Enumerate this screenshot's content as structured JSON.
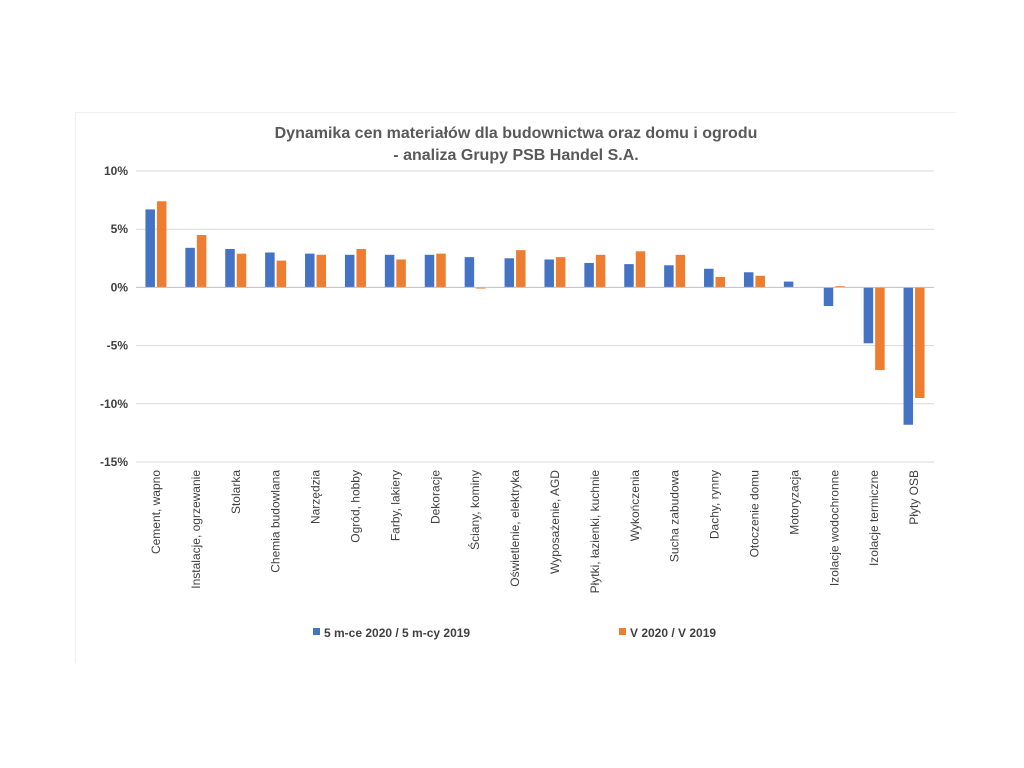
{
  "chart_data": {
    "type": "bar",
    "title": [
      "Dynamika cen materiałów dla budownictwa oraz domu i ogrodu",
      "- analiza Grupy PSB Handel S.A."
    ],
    "xlabel": "",
    "ylabel": "",
    "ylim": [
      -15,
      10
    ],
    "yticks": [
      10,
      5,
      0,
      -5,
      -10,
      -15
    ],
    "ytick_labels": [
      "10%",
      "5%",
      "0%",
      "-5%",
      "-10%",
      "-15%"
    ],
    "grid": true,
    "legend_position": "bottom",
    "categories": [
      "Cement, wapno",
      "Instalacje, ogrzewanie",
      "Stolarka",
      "Chemia budowlana",
      "Narzędzia",
      "Ogród, hobby",
      "Farby, lakiery",
      "Dekoracje",
      "Ściany, kominy",
      "Oświetlenie, elektryka",
      "Wyposażenie, AGD",
      "Płytki, łazienki, kuchnie",
      "Wykończenia",
      "Sucha zabudowa",
      "Dachy, rynny",
      "Otoczenie domu",
      "Motoryzacja",
      "Izolacje wodochronne",
      "Izolacje termiczne",
      "Płyty OSB"
    ],
    "series": [
      {
        "name": "5 m-ce 2020 / 5 m-cy 2019",
        "color": "#4472C4",
        "values": [
          6.7,
          3.4,
          3.3,
          3.0,
          2.9,
          2.8,
          2.8,
          2.8,
          2.6,
          2.5,
          2.4,
          2.1,
          2.0,
          1.9,
          1.6,
          1.3,
          0.5,
          -1.6,
          -4.8,
          -11.8
        ]
      },
      {
        "name": "V 2020 / V 2019",
        "color": "#ED7D31",
        "values": [
          7.4,
          4.5,
          2.9,
          2.3,
          2.8,
          3.3,
          2.4,
          2.9,
          -0.1,
          3.2,
          2.6,
          2.8,
          3.1,
          2.8,
          0.9,
          1.0,
          0.0,
          0.1,
          -7.1,
          -9.5
        ]
      }
    ]
  }
}
